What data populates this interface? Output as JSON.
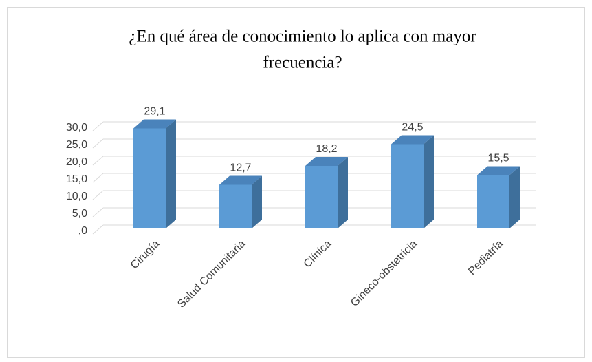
{
  "chart_data": {
    "type": "bar3d",
    "title_lines": [
      "¿En qué área de conocimiento lo aplica con mayor",
      "frecuencia?"
    ],
    "categories": [
      "Cirugía",
      "Salud Comunitaria",
      "Clínica",
      "Gineco-obstetricia",
      "Pediatría"
    ],
    "values": [
      29.1,
      12.7,
      18.2,
      24.5,
      15.5
    ],
    "value_labels": [
      "29,1",
      "12,7",
      "18,2",
      "24,5",
      "15,5"
    ],
    "color": "#5b9bd5",
    "ylim": [
      0,
      30
    ],
    "yticks": [
      {
        "value": 0,
        "label": ",0"
      },
      {
        "value": 5,
        "label": "5,0"
      },
      {
        "value": 10,
        "label": "10,0"
      },
      {
        "value": 15,
        "label": "15,0"
      },
      {
        "value": 20,
        "label": "20,0"
      },
      {
        "value": 25,
        "label": "25,0"
      },
      {
        "value": 30,
        "label": "30,0"
      }
    ],
    "grid": true
  }
}
